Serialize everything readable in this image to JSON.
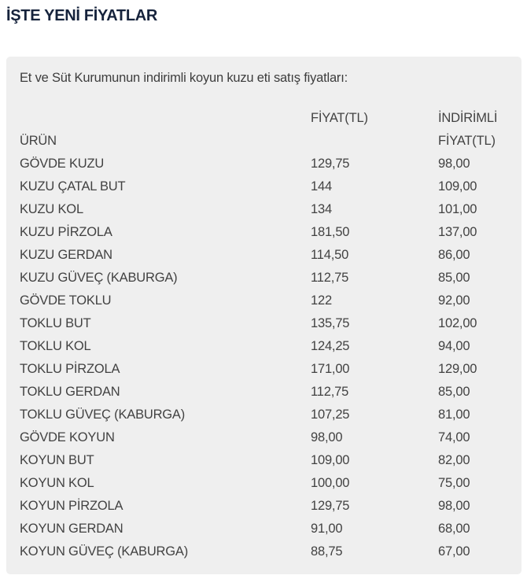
{
  "page": {
    "title": "İŞTE YENİ FİYATLAR"
  },
  "card": {
    "intro": "Et ve Süt Kurumunun indirimli koyun kuzu eti satış fiyatları:",
    "table": {
      "columns": [
        "ÜRÜN",
        "FİYAT(TL)",
        "İNDİRİMLİ FİYAT(TL)"
      ],
      "rows": [
        [
          "GÖVDE KUZU",
          "129,75",
          "98,00"
        ],
        [
          "KUZU ÇATAL BUT",
          "144",
          "109,00"
        ],
        [
          "KUZU KOL",
          "134",
          "101,00"
        ],
        [
          "KUZU PİRZOLA",
          "181,50",
          "137,00"
        ],
        [
          "KUZU GERDAN",
          "114,50",
          "86,00"
        ],
        [
          "KUZU GÜVEÇ (KABURGA)",
          "112,75",
          "85,00"
        ],
        [
          "GÖVDE TOKLU",
          "122",
          "92,00"
        ],
        [
          "TOKLU BUT",
          "135,75",
          "102,00"
        ],
        [
          "TOKLU KOL",
          "124,25",
          "94,00"
        ],
        [
          "TOKLU PİRZOLA",
          "171,00",
          "129,00"
        ],
        [
          "TOKLU GERDAN",
          "112,75",
          "85,00"
        ],
        [
          "TOKLU GÜVEÇ (KABURGA)",
          "107,25",
          "81,00"
        ],
        [
          "GÖVDE KOYUN",
          "98,00",
          "74,00"
        ],
        [
          "KOYUN BUT",
          "109,00",
          "82,00"
        ],
        [
          "KOYUN KOL",
          "100,00",
          "75,00"
        ],
        [
          "KOYUN PİRZOLA",
          "129,75",
          "98,00"
        ],
        [
          "KOYUN GERDAN",
          "91,00",
          "68,00"
        ],
        [
          "KOYUN GÜVEÇ (KABURGA)",
          "88,75",
          "67,00"
        ]
      ]
    }
  },
  "colors": {
    "title_navy": "#16233c",
    "card_background": "#efefef",
    "body_text": "#424242",
    "page_background": "#ffffff"
  }
}
